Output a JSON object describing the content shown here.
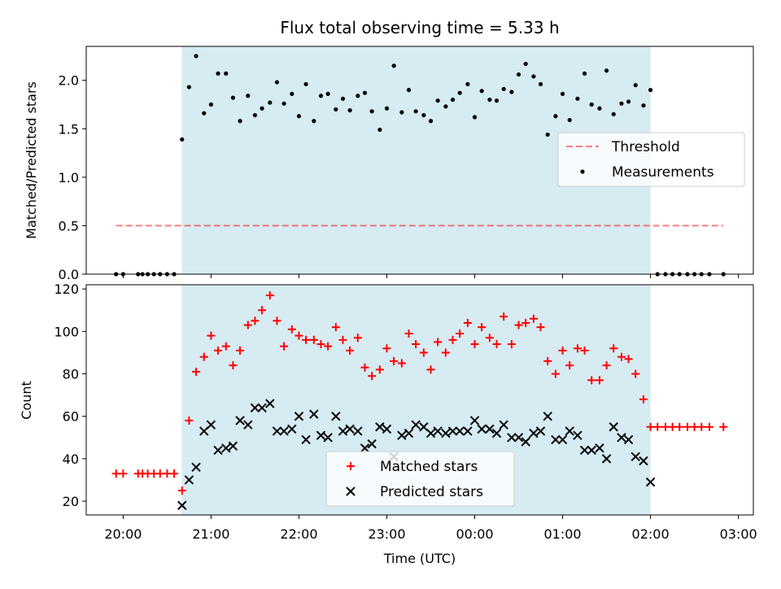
{
  "title": "Flux total observing time = 5.33 h",
  "colors": {
    "band": "#add8e6",
    "threshold": "#ff0000",
    "measurements": "#000000",
    "matched": "#ff0000",
    "predicted": "#000000"
  },
  "chart_data": [
    {
      "type": "scatter",
      "ylabel": "Matched/Predicted stars",
      "ylim": [
        0,
        2.35
      ],
      "yticks": [
        0.0,
        0.5,
        1.0,
        1.5,
        2.0
      ],
      "ytick_labels": [
        "0.0",
        "0.5",
        "1.0",
        "1.5",
        "2.0"
      ],
      "xlim_hours": [
        19.58,
        27.17
      ],
      "shaded_interval_hours": [
        20.667,
        26.0
      ],
      "legend": {
        "position": "center-right",
        "entries": [
          "Threshold",
          "Measurements"
        ]
      },
      "threshold": {
        "name": "Threshold",
        "value": 0.5,
        "x_hours": [
          19.92,
          26.83
        ]
      },
      "series": [
        {
          "name": "Measurements",
          "points": [
            [
              19.92,
              0
            ],
            [
              20.0,
              0
            ],
            [
              20.17,
              0
            ],
            [
              20.22,
              0
            ],
            [
              20.28,
              0
            ],
            [
              20.35,
              0
            ],
            [
              20.42,
              0
            ],
            [
              20.5,
              0
            ],
            [
              20.58,
              0
            ],
            [
              20.67,
              1.39
            ],
            [
              20.75,
              1.93
            ],
            [
              20.83,
              2.25
            ],
            [
              20.92,
              1.66
            ],
            [
              21.0,
              1.75
            ],
            [
              21.08,
              2.07
            ],
            [
              21.17,
              2.07
            ],
            [
              21.25,
              1.82
            ],
            [
              21.33,
              1.58
            ],
            [
              21.42,
              1.84
            ],
            [
              21.5,
              1.64
            ],
            [
              21.58,
              1.71
            ],
            [
              21.67,
              1.77
            ],
            [
              21.75,
              1.98
            ],
            [
              21.83,
              1.76
            ],
            [
              21.92,
              1.86
            ],
            [
              22.0,
              1.63
            ],
            [
              22.08,
              1.96
            ],
            [
              22.17,
              1.58
            ],
            [
              22.25,
              1.84
            ],
            [
              22.33,
              1.86
            ],
            [
              22.42,
              1.7
            ],
            [
              22.5,
              1.81
            ],
            [
              22.58,
              1.69
            ],
            [
              22.67,
              1.84
            ],
            [
              22.75,
              1.87
            ],
            [
              22.83,
              1.68
            ],
            [
              22.92,
              1.49
            ],
            [
              23.0,
              1.71
            ],
            [
              23.08,
              2.15
            ],
            [
              23.17,
              1.67
            ],
            [
              23.25,
              1.9
            ],
            [
              23.33,
              1.68
            ],
            [
              23.42,
              1.64
            ],
            [
              23.5,
              1.58
            ],
            [
              23.58,
              1.79
            ],
            [
              23.67,
              1.73
            ],
            [
              23.75,
              1.8
            ],
            [
              23.83,
              1.87
            ],
            [
              23.92,
              1.96
            ],
            [
              24.0,
              1.62
            ],
            [
              24.08,
              1.89
            ],
            [
              24.17,
              1.8
            ],
            [
              24.25,
              1.79
            ],
            [
              24.33,
              1.91
            ],
            [
              24.42,
              1.88
            ],
            [
              24.5,
              2.06
            ],
            [
              24.58,
              2.17
            ],
            [
              24.67,
              2.04
            ],
            [
              24.75,
              1.96
            ],
            [
              24.83,
              1.44
            ],
            [
              24.92,
              1.63
            ],
            [
              25.0,
              1.86
            ],
            [
              25.08,
              1.59
            ],
            [
              25.17,
              1.81
            ],
            [
              25.25,
              2.07
            ],
            [
              25.33,
              1.75
            ],
            [
              25.42,
              1.71
            ],
            [
              25.5,
              2.1
            ],
            [
              25.58,
              1.65
            ],
            [
              25.67,
              1.76
            ],
            [
              25.75,
              1.78
            ],
            [
              25.83,
              1.95
            ],
            [
              25.92,
              1.74
            ],
            [
              26.0,
              1.9
            ],
            [
              26.08,
              0
            ],
            [
              26.17,
              0
            ],
            [
              26.25,
              0
            ],
            [
              26.33,
              0
            ],
            [
              26.42,
              0
            ],
            [
              26.5,
              0
            ],
            [
              26.58,
              0
            ],
            [
              26.67,
              0
            ],
            [
              26.83,
              0
            ]
          ]
        }
      ]
    },
    {
      "type": "scatter",
      "ylabel": "Count",
      "xlabel": "Time (UTC)",
      "ylim": [
        13.5,
        122
      ],
      "yticks": [
        20,
        40,
        60,
        80,
        100,
        120
      ],
      "ytick_labels": [
        "20",
        "40",
        "60",
        "80",
        "100",
        "120"
      ],
      "xlim_hours": [
        19.58,
        27.17
      ],
      "xticks_hours": [
        20,
        21,
        22,
        23,
        24,
        25,
        26,
        27
      ],
      "xtick_labels": [
        "20:00",
        "21:00",
        "22:00",
        "23:00",
        "00:00",
        "01:00",
        "02:00",
        "03:00"
      ],
      "shaded_interval_hours": [
        20.667,
        26.0
      ],
      "legend": {
        "position": "bottom-center",
        "entries": [
          "Matched stars",
          "Predicted stars"
        ]
      },
      "series": [
        {
          "name": "Matched stars",
          "marker": "+",
          "points": [
            [
              19.92,
              33
            ],
            [
              20.0,
              33
            ],
            [
              20.17,
              33
            ],
            [
              20.22,
              33
            ],
            [
              20.28,
              33
            ],
            [
              20.35,
              33
            ],
            [
              20.42,
              33
            ],
            [
              20.5,
              33
            ],
            [
              20.58,
              33
            ],
            [
              20.67,
              25
            ],
            [
              20.75,
              58
            ],
            [
              20.83,
              81
            ],
            [
              20.92,
              88
            ],
            [
              21.0,
              98
            ],
            [
              21.08,
              91
            ],
            [
              21.17,
              93
            ],
            [
              21.25,
              84
            ],
            [
              21.33,
              91
            ],
            [
              21.42,
              103
            ],
            [
              21.5,
              105
            ],
            [
              21.58,
              110
            ],
            [
              21.67,
              117
            ],
            [
              21.75,
              105
            ],
            [
              21.83,
              93
            ],
            [
              21.92,
              101
            ],
            [
              22.0,
              98
            ],
            [
              22.08,
              96
            ],
            [
              22.17,
              96
            ],
            [
              22.25,
              94
            ],
            [
              22.33,
              93
            ],
            [
              22.42,
              102
            ],
            [
              22.5,
              96
            ],
            [
              22.58,
              91
            ],
            [
              22.67,
              97
            ],
            [
              22.75,
              83
            ],
            [
              22.83,
              79
            ],
            [
              22.92,
              82
            ],
            [
              23.0,
              92
            ],
            [
              23.08,
              86
            ],
            [
              23.17,
              85
            ],
            [
              23.25,
              99
            ],
            [
              23.33,
              94
            ],
            [
              23.42,
              90
            ],
            [
              23.5,
              82
            ],
            [
              23.58,
              95
            ],
            [
              23.67,
              90
            ],
            [
              23.75,
              96
            ],
            [
              23.83,
              99
            ],
            [
              23.92,
              104
            ],
            [
              24.0,
              94
            ],
            [
              24.08,
              102
            ],
            [
              24.17,
              97
            ],
            [
              24.25,
              94
            ],
            [
              24.33,
              107
            ],
            [
              24.42,
              94
            ],
            [
              24.5,
              103
            ],
            [
              24.58,
              104
            ],
            [
              24.67,
              106
            ],
            [
              24.75,
              102
            ],
            [
              24.83,
              86
            ],
            [
              24.92,
              80
            ],
            [
              25.0,
              91
            ],
            [
              25.08,
              84
            ],
            [
              25.17,
              92
            ],
            [
              25.25,
              91
            ],
            [
              25.33,
              77
            ],
            [
              25.42,
              77
            ],
            [
              25.5,
              84
            ],
            [
              25.58,
              92
            ],
            [
              25.67,
              88
            ],
            [
              25.75,
              87
            ],
            [
              25.83,
              80
            ],
            [
              25.92,
              68
            ],
            [
              26.0,
              55
            ],
            [
              26.08,
              55
            ],
            [
              26.17,
              55
            ],
            [
              26.25,
              55
            ],
            [
              26.33,
              55
            ],
            [
              26.42,
              55
            ],
            [
              26.5,
              55
            ],
            [
              26.58,
              55
            ],
            [
              26.67,
              55
            ],
            [
              26.83,
              55
            ]
          ]
        },
        {
          "name": "Predicted stars",
          "marker": "x",
          "points": [
            [
              20.67,
              18
            ],
            [
              20.75,
              30
            ],
            [
              20.83,
              36
            ],
            [
              20.92,
              53
            ],
            [
              21.0,
              56
            ],
            [
              21.08,
              44
            ],
            [
              21.17,
              45
            ],
            [
              21.25,
              46
            ],
            [
              21.33,
              58
            ],
            [
              21.42,
              56
            ],
            [
              21.5,
              64
            ],
            [
              21.58,
              64
            ],
            [
              21.67,
              66
            ],
            [
              21.75,
              53
            ],
            [
              21.83,
              53
            ],
            [
              21.92,
              54
            ],
            [
              22.0,
              60
            ],
            [
              22.08,
              49
            ],
            [
              22.17,
              61
            ],
            [
              22.25,
              51
            ],
            [
              22.33,
              50
            ],
            [
              22.42,
              60
            ],
            [
              22.5,
              53
            ],
            [
              22.58,
              54
            ],
            [
              22.67,
              53
            ],
            [
              22.75,
              45
            ],
            [
              22.83,
              47
            ],
            [
              22.92,
              55
            ],
            [
              23.0,
              54
            ],
            [
              23.08,
              41
            ],
            [
              23.17,
              51
            ],
            [
              23.25,
              52
            ],
            [
              23.33,
              56
            ],
            [
              23.42,
              55
            ],
            [
              23.5,
              52
            ],
            [
              23.58,
              53
            ],
            [
              23.67,
              52
            ],
            [
              23.75,
              53
            ],
            [
              23.83,
              53
            ],
            [
              23.92,
              53
            ],
            [
              24.0,
              58
            ],
            [
              24.08,
              54
            ],
            [
              24.17,
              54
            ],
            [
              24.25,
              52
            ],
            [
              24.33,
              56
            ],
            [
              24.42,
              50
            ],
            [
              24.5,
              50
            ],
            [
              24.58,
              48
            ],
            [
              24.67,
              52
            ],
            [
              24.75,
              53
            ],
            [
              24.83,
              60
            ],
            [
              24.92,
              49
            ],
            [
              25.0,
              49
            ],
            [
              25.08,
              53
            ],
            [
              25.17,
              51
            ],
            [
              25.25,
              44
            ],
            [
              25.33,
              44
            ],
            [
              25.42,
              45
            ],
            [
              25.5,
              40
            ],
            [
              25.58,
              55
            ],
            [
              25.67,
              50
            ],
            [
              25.75,
              49
            ],
            [
              25.83,
              41
            ],
            [
              25.92,
              39
            ],
            [
              26.0,
              29
            ]
          ]
        }
      ]
    }
  ]
}
